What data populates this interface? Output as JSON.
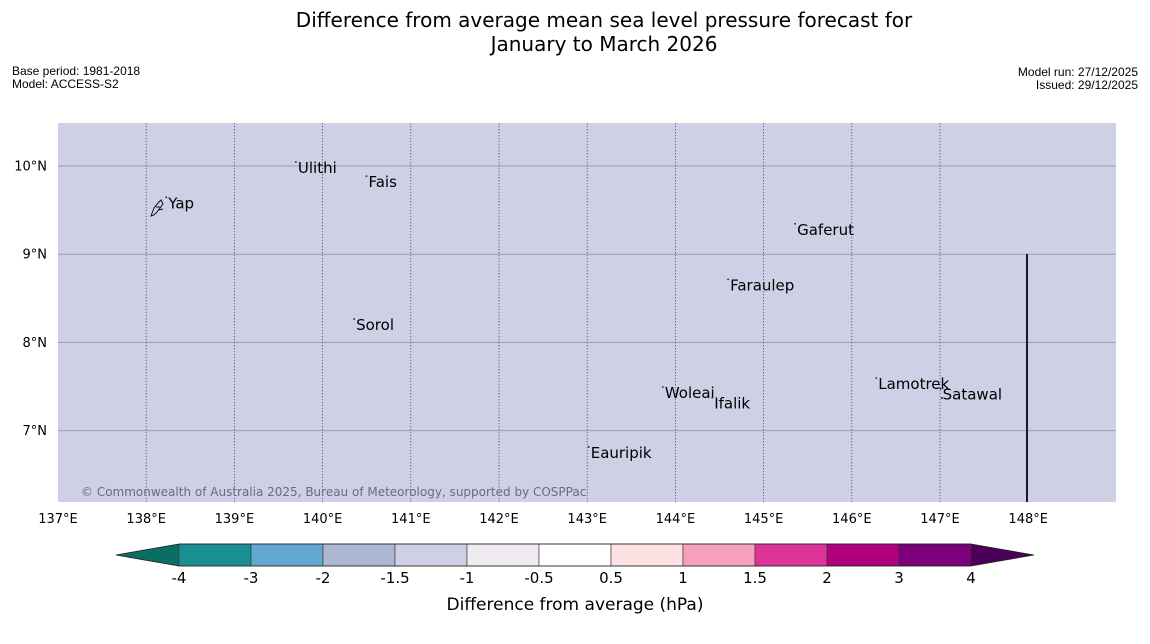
{
  "title": {
    "line1": "Difference from average mean sea level pressure forecast for",
    "line2": "January to March 2026"
  },
  "meta_left": {
    "base_period": "Base period: 1981-2018",
    "model": "Model: ACCESS-S2"
  },
  "meta_right": {
    "model_run": "Model run: 27/12/2025",
    "issued": "Issued: 29/12/2025"
  },
  "map": {
    "background_color": "#cfd0e5",
    "lon_range": [
      137,
      149
    ],
    "lat_range": [
      6.2,
      10.5
    ],
    "lat_ticks": [
      {
        "value": 10,
        "label": "10°N"
      },
      {
        "value": 9,
        "label": "9°N"
      },
      {
        "value": 8,
        "label": "8°N"
      },
      {
        "value": 7,
        "label": "7°N"
      }
    ],
    "lon_ticks": [
      {
        "value": 137,
        "label": "137°E"
      },
      {
        "value": 138,
        "label": "138°E"
      },
      {
        "value": 139,
        "label": "139°E"
      },
      {
        "value": 140,
        "label": "140°E"
      },
      {
        "value": 141,
        "label": "141°E"
      },
      {
        "value": 142,
        "label": "142°E"
      },
      {
        "value": 143,
        "label": "143°E"
      },
      {
        "value": 144,
        "label": "144°E"
      },
      {
        "value": 145,
        "label": "145°E"
      },
      {
        "value": 146,
        "label": "146°E"
      },
      {
        "value": 147,
        "label": "147°E"
      },
      {
        "value": 148,
        "label": "148°E"
      }
    ],
    "places": [
      {
        "name": "Yap",
        "lon": 138.25,
        "lat": 9.52
      },
      {
        "name": "Ulithi",
        "lon": 139.72,
        "lat": 9.92
      },
      {
        "name": "Fais",
        "lon": 140.52,
        "lat": 9.76
      },
      {
        "name": "Gaferut",
        "lon": 145.38,
        "lat": 9.22
      },
      {
        "name": "Faraulep",
        "lon": 144.62,
        "lat": 8.59
      },
      {
        "name": "Sorol",
        "lon": 140.38,
        "lat": 8.14
      },
      {
        "name": "Woleai",
        "lon": 143.88,
        "lat": 7.37
      },
      {
        "name": "Ifalik",
        "lon": 144.44,
        "lat": 7.25
      },
      {
        "name": "Lamotrek",
        "lon": 146.3,
        "lat": 7.47
      },
      {
        "name": "Satawal",
        "lon": 147.03,
        "lat": 7.35
      },
      {
        "name": "Eauripik",
        "lon": 143.04,
        "lat": 6.69
      }
    ],
    "credit": "© Commonwealth of Australia 2025, Bureau of Meteorology, supported by COSPPac"
  },
  "colorbar": {
    "title": "Difference from average (hPa)",
    "tick_labels": [
      "-4",
      "-3",
      "-2",
      "-1.5",
      "-1",
      "-0.5",
      "0.5",
      "1",
      "1.5",
      "2",
      "3",
      "4"
    ],
    "under_color": "#0b6e62",
    "over_color": "#4a0057",
    "colors": [
      "#1a8f92",
      "#63a8d0",
      "#aeb7d2",
      "#cfd0e5",
      "#efebf1",
      "#ffffff",
      "#fde0e2",
      "#f7a0bc",
      "#de3499",
      "#b0007e",
      "#7d007b"
    ]
  }
}
